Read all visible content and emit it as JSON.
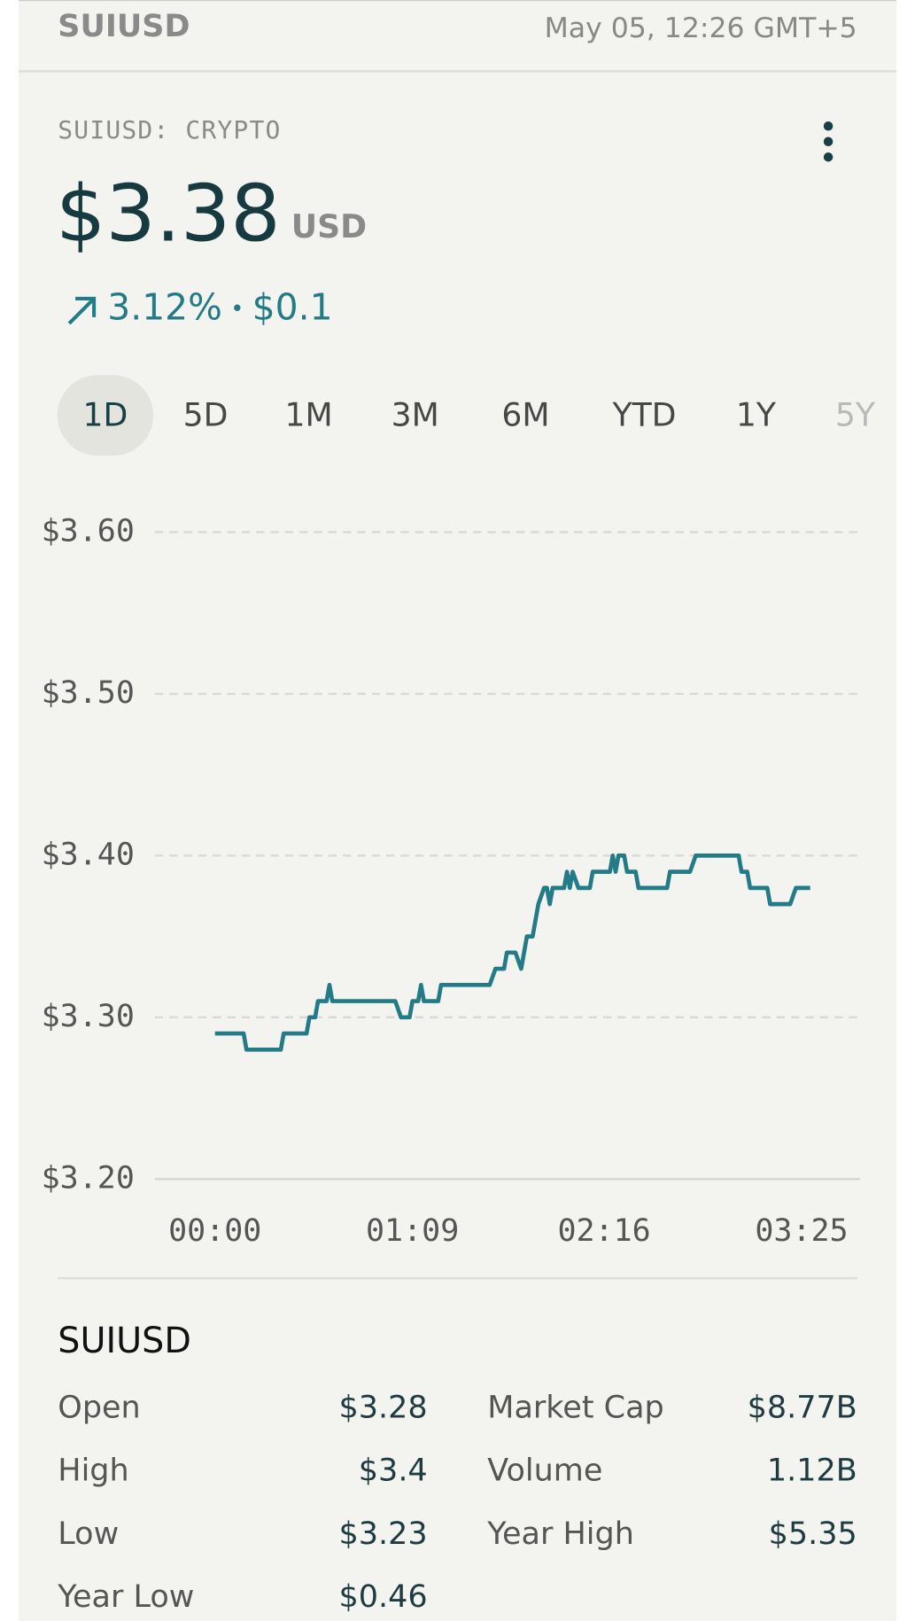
{
  "header": {
    "symbol": "SUIUSD",
    "timestamp": "May 05, 12:26 GMT+5"
  },
  "quote": {
    "exchange": "SUIUSD: CRYPTO",
    "price": "$3.38",
    "currency": "USD",
    "change_percent": "3.12%",
    "change_amount": "$0.1"
  },
  "tabs": [
    "1D",
    "5D",
    "1M",
    "3M",
    "6M",
    "YTD",
    "1Y",
    "5Y"
  ],
  "chart_data": {
    "type": "line",
    "color": "#237b87",
    "x": [
      0,
      10,
      11,
      23,
      24,
      32,
      33,
      35,
      36,
      39,
      40,
      41,
      63,
      65,
      68,
      69,
      71,
      72,
      73,
      78,
      79,
      96,
      98,
      101,
      102,
      105,
      107,
      108,
      109,
      111,
      112,
      113,
      115,
      116,
      117,
      118,
      122,
      123,
      124,
      125,
      127,
      131,
      132,
      138,
      139,
      140,
      141,
      143,
      144,
      147,
      148,
      158,
      159,
      166,
      168,
      183,
      184,
      186,
      187,
      193,
      194,
      201,
      203,
      208
    ],
    "values": [
      3.29,
      3.29,
      3.28,
      3.28,
      3.29,
      3.29,
      3.3,
      3.3,
      3.31,
      3.31,
      3.32,
      3.31,
      3.31,
      3.3,
      3.3,
      3.31,
      3.31,
      3.32,
      3.31,
      3.31,
      3.32,
      3.32,
      3.33,
      3.33,
      3.34,
      3.34,
      3.33,
      3.34,
      3.35,
      3.35,
      3.36,
      3.37,
      3.38,
      3.38,
      3.37,
      3.38,
      3.38,
      3.39,
      3.38,
      3.39,
      3.38,
      3.38,
      3.39,
      3.39,
      3.4,
      3.39,
      3.4,
      3.4,
      3.39,
      3.39,
      3.38,
      3.38,
      3.39,
      3.39,
      3.4,
      3.4,
      3.39,
      3.39,
      3.38,
      3.38,
      3.37,
      3.37,
      3.38,
      3.38
    ],
    "xlim": [
      -21,
      225.5
    ],
    "xticks": [
      {
        "value": 0,
        "label": "00:00"
      },
      {
        "value": 69,
        "label": "01:09"
      },
      {
        "value": 136,
        "label": "02:16"
      },
      {
        "value": 205,
        "label": "03:25"
      }
    ],
    "ylim": [
      3.2,
      3.6
    ],
    "yticks": [
      {
        "value": 3.2,
        "label": "$3.20"
      },
      {
        "value": 3.3,
        "label": "$3.30"
      },
      {
        "value": 3.4,
        "label": "$3.40"
      },
      {
        "value": 3.5,
        "label": "$3.50"
      },
      {
        "value": 3.6,
        "label": "$3.60"
      }
    ],
    "grid": true
  },
  "stats": {
    "title": "SUIUSD",
    "items": [
      [
        "Open",
        "$3.28"
      ],
      [
        "Market Cap",
        "$8.77B"
      ],
      [
        "High",
        "$3.4"
      ],
      [
        "Volume",
        "1.12B"
      ],
      [
        "Low",
        "$3.23"
      ],
      [
        "Year High",
        "$5.35"
      ],
      [
        "Year Low",
        "$0.46"
      ]
    ]
  }
}
